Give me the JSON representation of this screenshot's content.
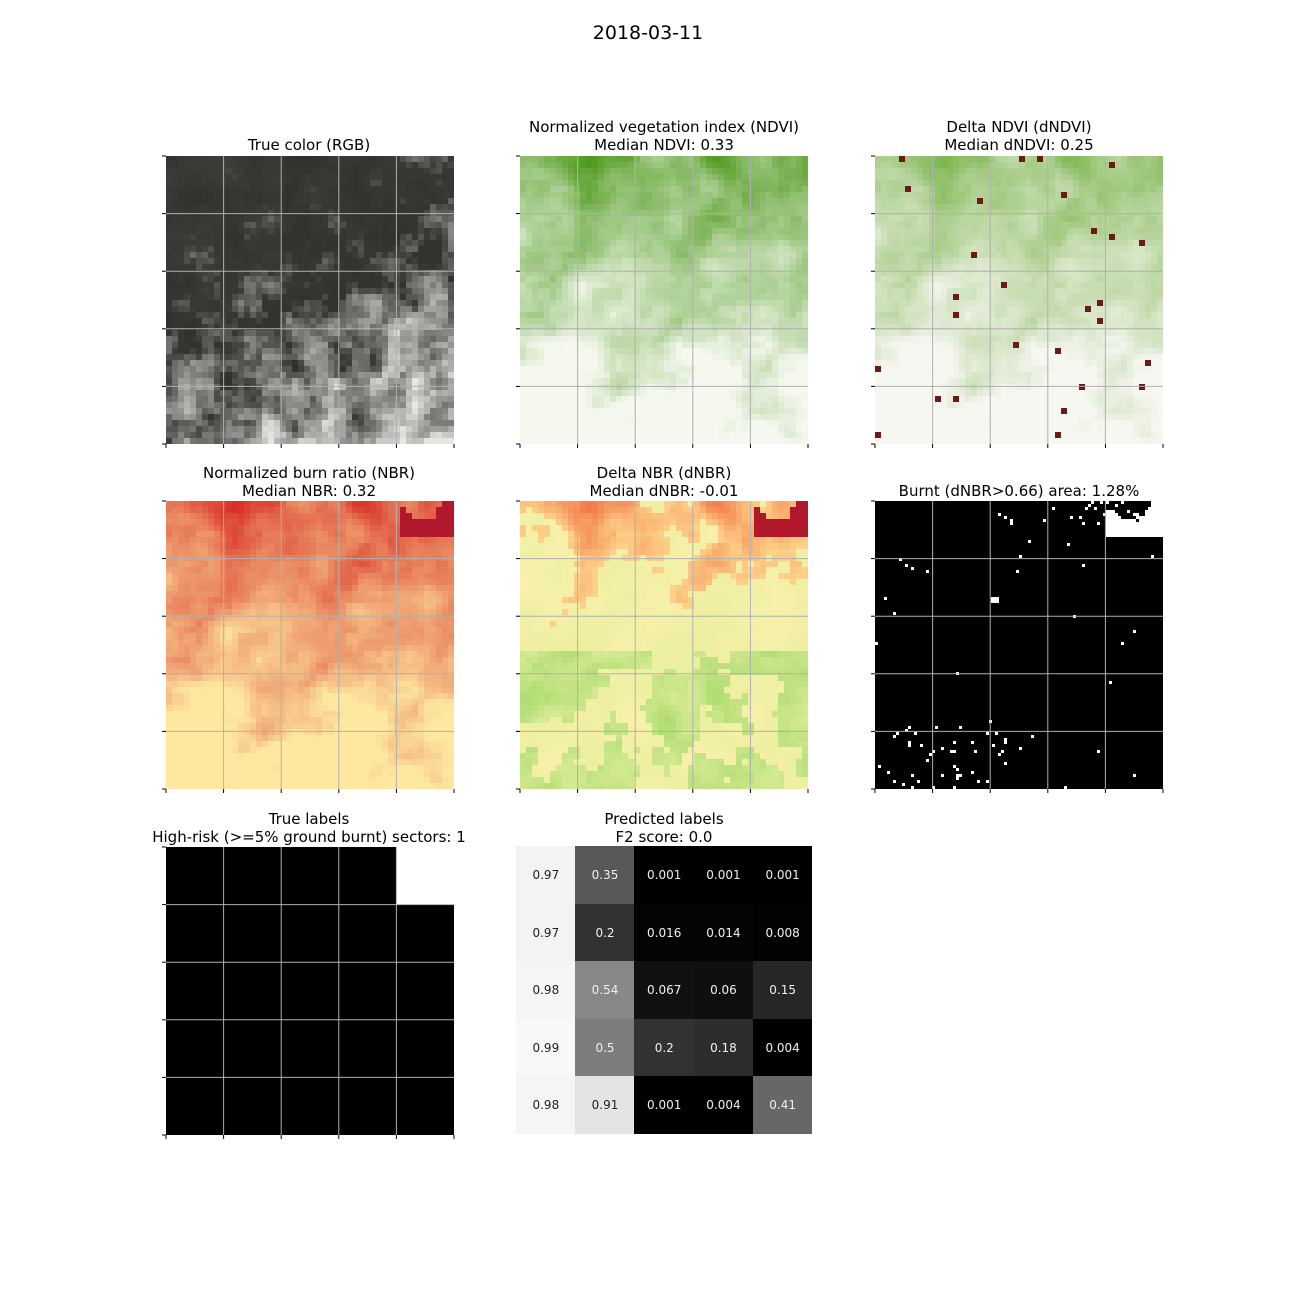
{
  "figure": {
    "suptitle": "2018-03-11"
  },
  "panels": {
    "rgb": {
      "title": "True color (RGB)"
    },
    "ndvi": {
      "title": "Normalized vegetation index (NDVI)",
      "subtitle": "Median NDVI: 0.33"
    },
    "dndvi": {
      "title": "Delta NDVI (dNDVI)",
      "subtitle": "Median dNDVI: 0.25"
    },
    "nbr": {
      "title": "Normalized burn ratio (NBR)",
      "subtitle": "Median NBR: 0.32"
    },
    "dnbr": {
      "title": "Delta NBR (dNBR)",
      "subtitle": "Median dNBR: -0.01"
    },
    "burnt": {
      "title": "Burnt (dNBR>0.66) area: 1.28%"
    },
    "true_labels": {
      "title": "True labels",
      "subtitle": "High-risk (>=5% ground burnt) sectors: 1"
    },
    "predicted": {
      "title": "Predicted labels",
      "subtitle": "F2 score: 0.0"
    }
  },
  "colors": {
    "ndvi_high": "#4f9a1e",
    "ndvi_low": "#f4f8ee",
    "nbr_high": "#d73027",
    "nbr_low": "#fee8a0",
    "dnbr_green": "#a6d96a",
    "burnt_white": "#ffffff",
    "grid": "#b0b0b0"
  },
  "chart_data": [
    {
      "type": "heatmap",
      "name": "True labels",
      "grid_size": [
        5,
        5
      ],
      "values": [
        [
          0,
          0,
          0,
          0,
          1
        ],
        [
          0,
          0,
          0,
          0,
          0
        ],
        [
          0,
          0,
          0,
          0,
          0
        ],
        [
          0,
          0,
          0,
          0,
          0
        ],
        [
          0,
          0,
          0,
          0,
          0
        ]
      ]
    },
    {
      "type": "heatmap",
      "name": "Predicted labels",
      "grid_size": [
        5,
        5
      ],
      "values": [
        [
          "0.97",
          "0.35",
          "0.001",
          "0.001",
          "0.001"
        ],
        [
          "0.97",
          "0.2",
          "0.016",
          "0.014",
          "0.008"
        ],
        [
          "0.98",
          "0.54",
          "0.067",
          "0.06",
          "0.15"
        ],
        [
          "0.99",
          "0.5",
          "0.2",
          "0.18",
          "0.004"
        ],
        [
          "0.98",
          "0.91",
          "0.001",
          "0.004",
          "0.41"
        ]
      ]
    }
  ]
}
